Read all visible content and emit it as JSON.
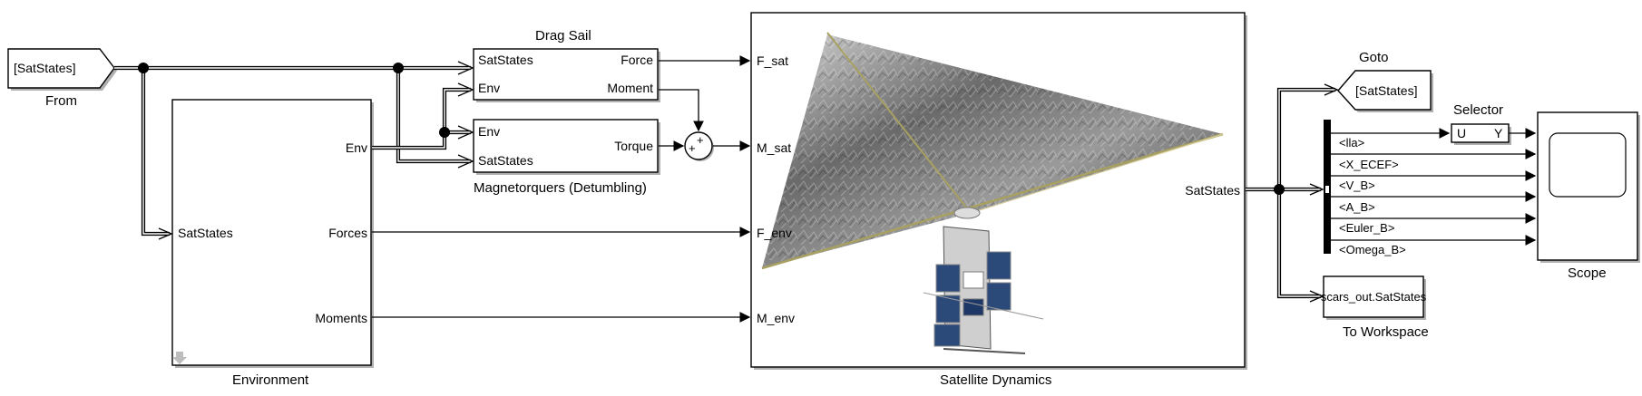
{
  "from_block": {
    "tag": "[SatStates]",
    "caption": "From"
  },
  "drag_sail": {
    "title": "Drag Sail",
    "inputs": [
      "SatStates",
      "Env"
    ],
    "outputs": [
      "Force",
      "Moment"
    ]
  },
  "magnetorquers": {
    "caption": "Magnetorquers (Detumbling)",
    "inputs": [
      "Env",
      "SatStates"
    ],
    "outputs": [
      "Torque"
    ]
  },
  "sum_block": {
    "signs": [
      "+",
      "+"
    ]
  },
  "environment": {
    "caption": "Environment",
    "inputs": [
      "SatStates"
    ],
    "outputs": [
      "Env",
      "Forces",
      "Moments"
    ]
  },
  "satellite_dynamics": {
    "caption": "Satellite Dynamics",
    "inputs": [
      "F_sat",
      "M_sat",
      "F_env",
      "M_env"
    ],
    "outputs": [
      "SatStates"
    ]
  },
  "goto_block": {
    "title": "Goto",
    "tag": "[SatStates]"
  },
  "selector": {
    "title": "Selector",
    "in_label": "U",
    "out_label": "Y"
  },
  "bus_selector": {
    "signals": [
      "<lla>",
      "<X_ECEF>",
      "<V_B>",
      "<A_B>",
      "<Euler_B>",
      "<Omega_B>"
    ]
  },
  "scope": {
    "caption": "Scope"
  },
  "to_workspace": {
    "variable": "scars_out.SatStates",
    "caption": "To Workspace"
  },
  "colors": {
    "panel": "#2b4a7a",
    "sail_dark": "#4a4a4a",
    "sail_light": "#bdbdbd",
    "boom": "#a8a060"
  }
}
